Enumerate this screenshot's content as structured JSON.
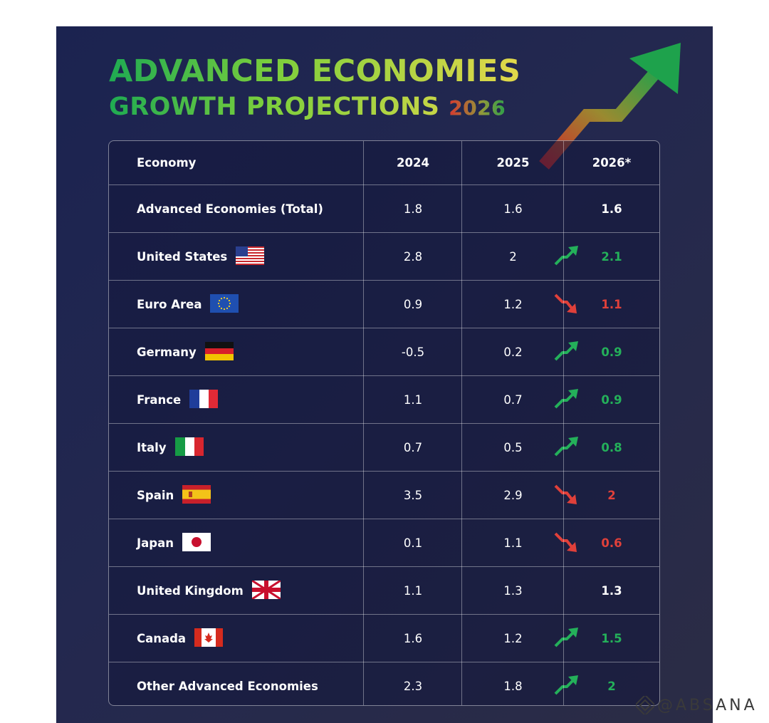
{
  "title": {
    "line1": "ADVANCED ECONOMIES",
    "line2": "GROWTH PROJECTIONS",
    "year": "2026"
  },
  "table": {
    "headers": [
      "Economy",
      "2024",
      "2025",
      "2026*"
    ],
    "rows": [
      {
        "name": "Advanced Economies (Total)",
        "flag": "",
        "y2024": "1.8",
        "y2025": "1.6",
        "y2026": "1.6",
        "trend": "none"
      },
      {
        "name": "United States",
        "flag": "us-flag-icon",
        "y2024": "2.8",
        "y2025": "2",
        "y2026": "2.1",
        "trend": "up"
      },
      {
        "name": "Euro Area",
        "flag": "eu-flag-icon",
        "y2024": "0.9",
        "y2025": "1.2",
        "y2026": "1.1",
        "trend": "down"
      },
      {
        "name": "Germany",
        "flag": "germany-flag-icon",
        "y2024": "-0.5",
        "y2025": "0.2",
        "y2026": "0.9",
        "trend": "up"
      },
      {
        "name": "France",
        "flag": "france-flag-icon",
        "y2024": "1.1",
        "y2025": "0.7",
        "y2026": "0.9",
        "trend": "up"
      },
      {
        "name": "Italy",
        "flag": "italy-flag-icon",
        "y2024": "0.7",
        "y2025": "0.5",
        "y2026": "0.8",
        "trend": "up"
      },
      {
        "name": "Spain",
        "flag": "spain-flag-icon",
        "y2024": "3.5",
        "y2025": "2.9",
        "y2026": "2",
        "trend": "down"
      },
      {
        "name": "Japan",
        "flag": "japan-flag-icon",
        "y2024": "0.1",
        "y2025": "1.1",
        "y2026": "0.6",
        "trend": "down"
      },
      {
        "name": "United Kingdom",
        "flag": "uk-flag-icon",
        "y2024": "1.1",
        "y2025": "1.3",
        "y2026": "1.3",
        "trend": "none"
      },
      {
        "name": "Canada",
        "flag": "canada-flag-icon",
        "y2024": "1.6",
        "y2025": "1.2",
        "y2026": "1.5",
        "trend": "up"
      },
      {
        "name": "Other Advanced Economies",
        "flag": "",
        "y2024": "2.3",
        "y2025": "1.8",
        "y2026": "2",
        "trend": "up"
      }
    ]
  },
  "colors": {
    "up": "#24b05a",
    "down": "#e0403a",
    "title_green": "#1faa52",
    "title_yellow": "#e3d84a"
  },
  "watermark": "@ABSANA"
}
